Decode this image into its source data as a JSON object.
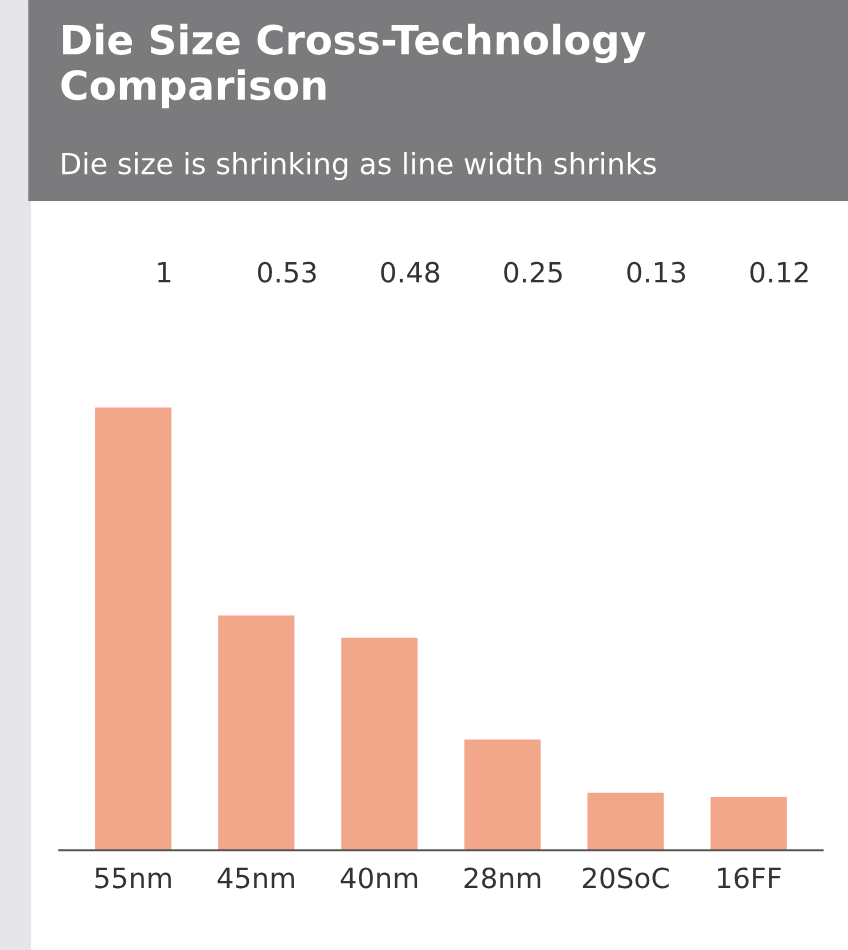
{
  "chart_data": {
    "type": "bar",
    "title": "Die Size Cross-Technology Comparison",
    "subtitle": "Die size is shrinking as line width shrinks",
    "categories": [
      "55nm",
      "45nm",
      "40nm",
      "28nm",
      "20SoC",
      "16FF"
    ],
    "values": [
      1,
      0.53,
      0.48,
      0.25,
      0.13,
      0.12
    ],
    "color": "#f2a68a",
    "data_labels": true,
    "grid": false,
    "legend": false
  }
}
